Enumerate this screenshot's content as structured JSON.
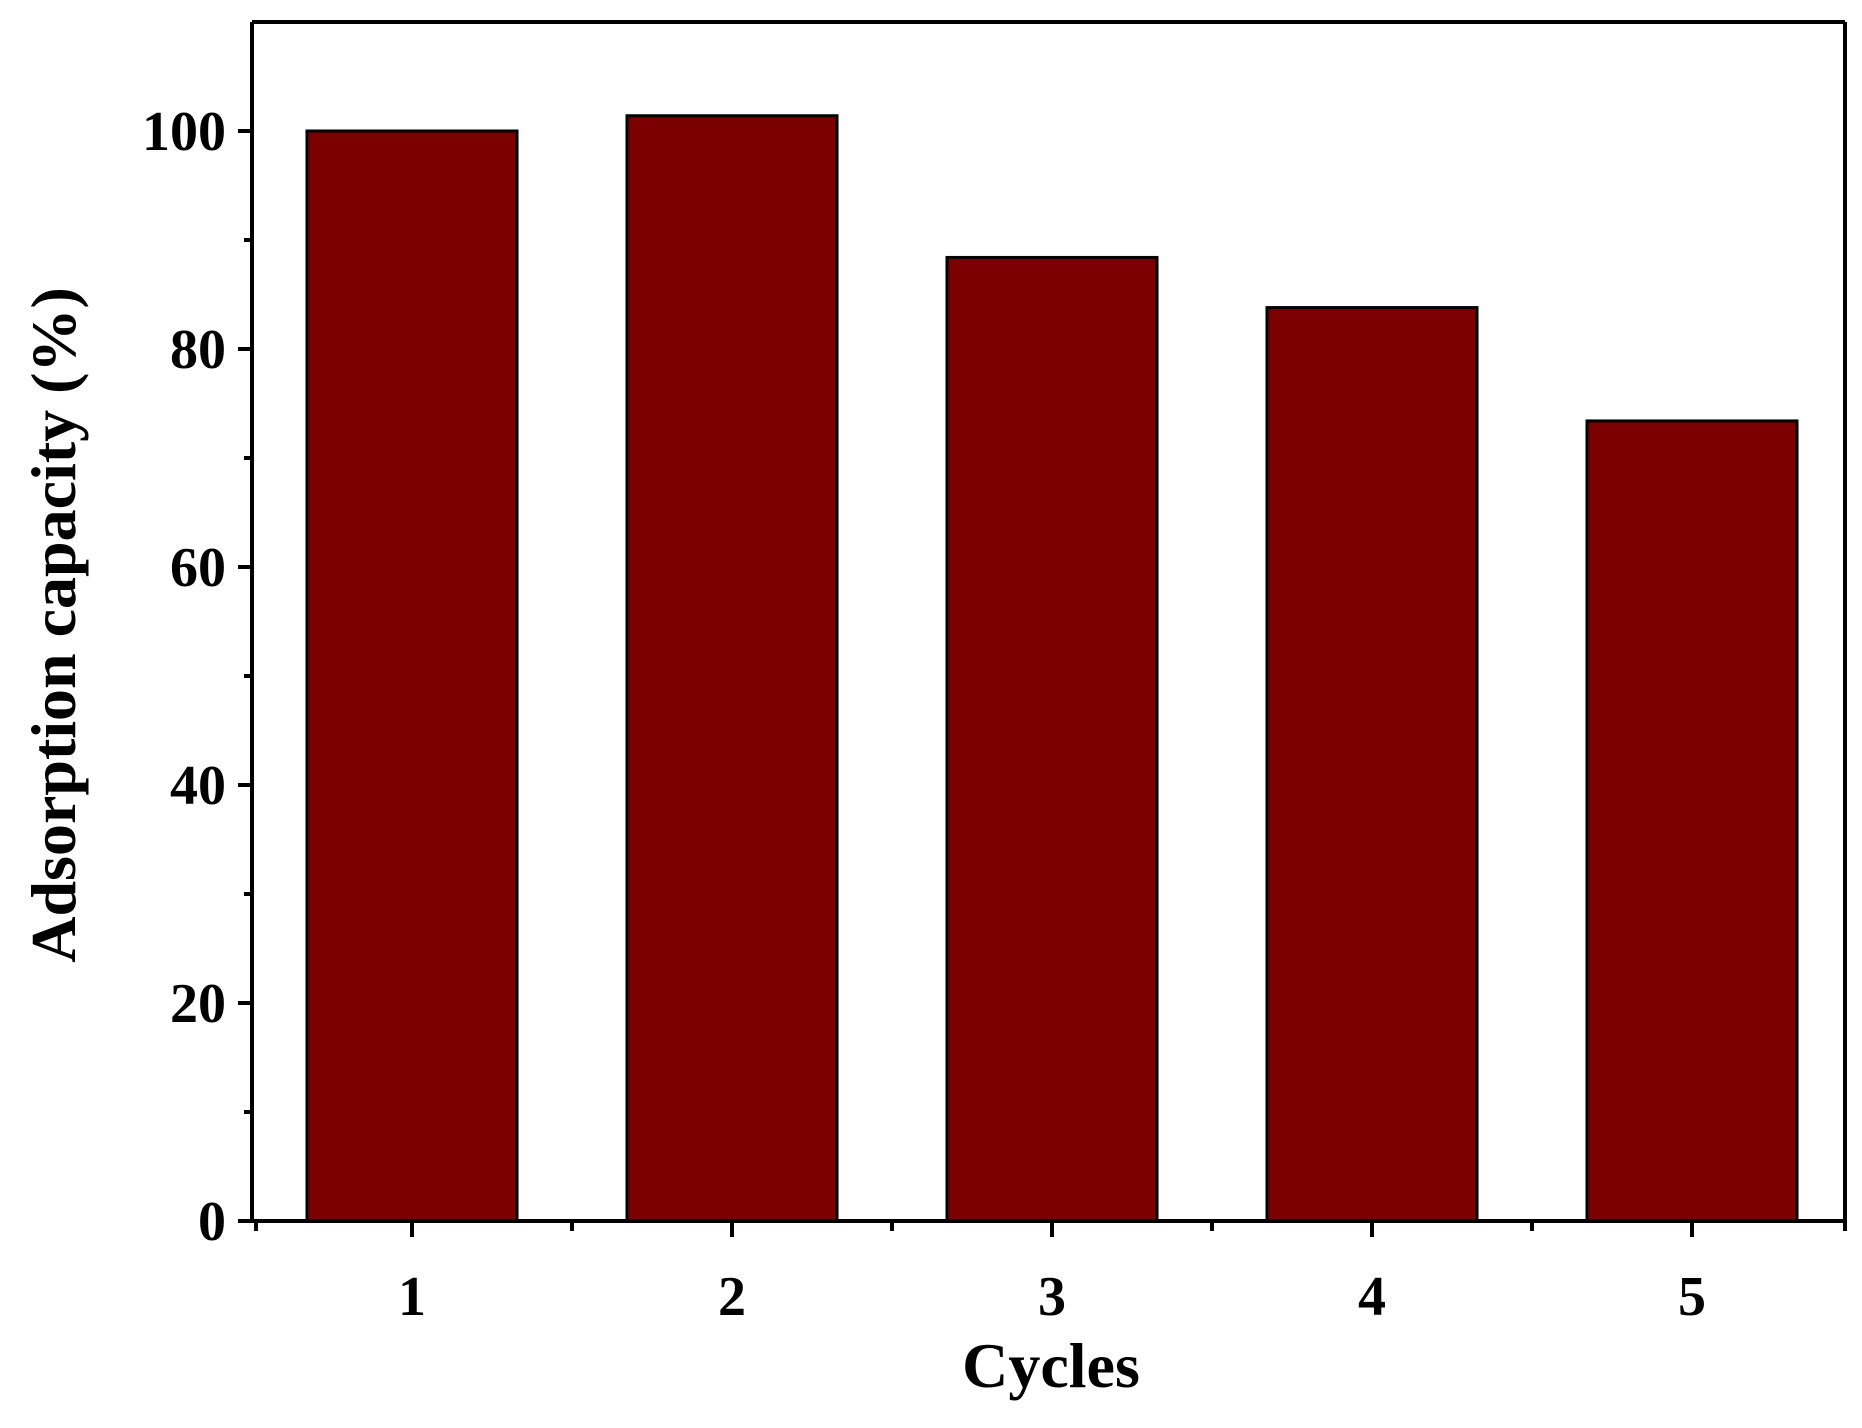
{
  "chart_data": {
    "type": "bar",
    "title": "",
    "xlabel": "Cycles",
    "ylabel": "Adsorption capacity (%)",
    "categories": [
      "1",
      "2",
      "3",
      "4",
      "5"
    ],
    "values": [
      100,
      101.4,
      88.4,
      83.8,
      73.4
    ],
    "ylim": [
      0,
      110
    ],
    "yticks": [
      0,
      20,
      40,
      60,
      80,
      100
    ],
    "yticks_minor": [
      10,
      30,
      50,
      70,
      90
    ],
    "grid": false,
    "legend": "none",
    "colors": {
      "bar_fill": "#7b0000",
      "bar_stroke": "#000000",
      "axis": "#000000"
    }
  }
}
